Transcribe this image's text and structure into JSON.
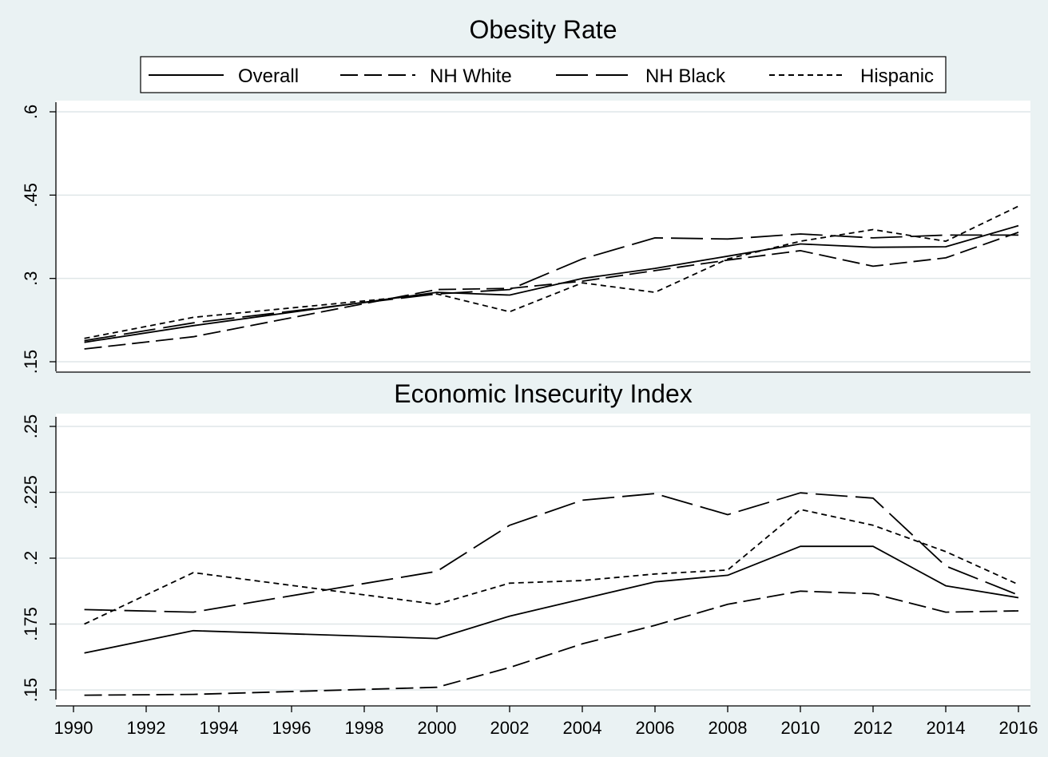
{
  "legend": {
    "entries": [
      {
        "label": "Overall",
        "dash": "solid"
      },
      {
        "label": "NH White",
        "dash": "dash"
      },
      {
        "label": "NH Black",
        "dash": "longdash"
      },
      {
        "label": "Hispanic",
        "dash": "shortdash"
      }
    ],
    "placement": "top"
  },
  "chart_data": [
    {
      "type": "line",
      "title": "Obesity Rate",
      "xlabel": "",
      "ylabel": "",
      "xlim": [
        1990,
        2016
      ],
      "ylim": [
        0.15,
        0.6
      ],
      "yticks": [
        0.15,
        0.3,
        0.45,
        0.6
      ],
      "ytick_labels": [
        ".15",
        ".3",
        ".45",
        ".6"
      ],
      "grid": true,
      "series": [
        {
          "name": "Overall",
          "dash": "solid",
          "x": [
            1990.3,
            1993.3,
            2000,
            2002,
            2004,
            2006,
            2008,
            2010,
            2012,
            2014,
            2016
          ],
          "y": [
            0.185,
            0.215,
            0.275,
            0.27,
            0.3,
            0.318,
            0.34,
            0.362,
            0.356,
            0.357,
            0.395
          ]
        },
        {
          "name": "NH White",
          "dash": "dash",
          "x": [
            1990.3,
            1993.3,
            2000,
            2002,
            2004,
            2006,
            2008,
            2010,
            2012,
            2014,
            2016
          ],
          "y": [
            0.173,
            0.195,
            0.28,
            0.282,
            0.295,
            0.314,
            0.333,
            0.35,
            0.322,
            0.337,
            0.383
          ]
        },
        {
          "name": "NH Black",
          "dash": "longdash",
          "x": [
            1990.3,
            1993.3,
            2000,
            2002,
            2004,
            2006,
            2008,
            2010,
            2012,
            2014,
            2016
          ],
          "y": [
            0.188,
            0.22,
            0.272,
            0.28,
            0.335,
            0.373,
            0.371,
            0.38,
            0.373,
            0.378,
            0.378
          ]
        },
        {
          "name": "Hispanic",
          "dash": "shortdash",
          "x": [
            1990.3,
            1993.3,
            2000,
            2002,
            2004,
            2006,
            2008,
            2010,
            2012,
            2014,
            2016
          ],
          "y": [
            0.192,
            0.23,
            0.272,
            0.24,
            0.292,
            0.275,
            0.335,
            0.367,
            0.388,
            0.367,
            0.43
          ]
        }
      ]
    },
    {
      "type": "line",
      "title": "Economic Insecurity Index",
      "xlabel": "",
      "ylabel": "",
      "xlim": [
        1990,
        2016
      ],
      "ylim": [
        0.15,
        0.25
      ],
      "yticks": [
        0.15,
        0.175,
        0.2,
        0.225,
        0.25
      ],
      "ytick_labels": [
        ".15",
        ".175",
        ".2",
        ".225",
        ".25"
      ],
      "xticks": [
        1990,
        1992,
        1994,
        1996,
        1998,
        2000,
        2002,
        2004,
        2006,
        2008,
        2010,
        2012,
        2014,
        2016
      ],
      "xtick_labels": [
        "1990",
        "1992",
        "1994",
        "1996",
        "1998",
        "2000",
        "2002",
        "2004",
        "2006",
        "2008",
        "2010",
        "2012",
        "2014",
        "2016"
      ],
      "grid": true,
      "series": [
        {
          "name": "Overall",
          "dash": "solid",
          "x": [
            1990.3,
            1993.3,
            2000,
            2002,
            2004,
            2006,
            2008,
            2010,
            2012,
            2014,
            2016
          ],
          "y": [
            0.164,
            0.1725,
            0.1695,
            0.178,
            0.1845,
            0.191,
            0.1935,
            0.2045,
            0.2045,
            0.1895,
            0.185
          ]
        },
        {
          "name": "NH White",
          "dash": "dash",
          "x": [
            1990.3,
            1993.3,
            2000,
            2002,
            2004,
            2006,
            2008,
            2010,
            2012,
            2014,
            2016
          ],
          "y": [
            0.148,
            0.1483,
            0.151,
            0.1585,
            0.1675,
            0.1745,
            0.1825,
            0.1875,
            0.1865,
            0.1795,
            0.18
          ]
        },
        {
          "name": "NH Black",
          "dash": "longdash",
          "x": [
            1990.3,
            1993.3,
            2000,
            2002,
            2004,
            2006,
            2008,
            2010,
            2012,
            2014,
            2016
          ],
          "y": [
            0.1805,
            0.1795,
            0.195,
            0.2125,
            0.222,
            0.2245,
            0.2165,
            0.2248,
            0.2228,
            0.197,
            0.186
          ]
        },
        {
          "name": "Hispanic",
          "dash": "shortdash",
          "x": [
            1990.3,
            1993.3,
            2000,
            2002,
            2004,
            2006,
            2008,
            2010,
            2012,
            2014,
            2016
          ],
          "y": [
            0.175,
            0.1945,
            0.1825,
            0.1905,
            0.1915,
            0.194,
            0.1955,
            0.2185,
            0.2125,
            0.2025,
            0.19
          ]
        }
      ]
    }
  ]
}
